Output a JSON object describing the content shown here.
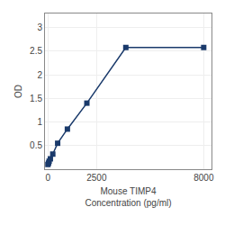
{
  "chart_data": {
    "type": "line",
    "x": [
      0,
      31.25,
      62.5,
      125,
      250,
      500,
      1000,
      2000,
      4000,
      8000
    ],
    "values": [
      0.1,
      0.13,
      0.17,
      0.22,
      0.32,
      0.55,
      0.85,
      1.4,
      2.58,
      2.58
    ],
    "color": "#1a3a6b",
    "marker": "square",
    "xlabel": "Mouse TIMP4\nConcentration (pg/ml)",
    "ylabel": "OD",
    "xlim": [
      -150,
      8400
    ],
    "xticks": [
      0,
      2500,
      8000
    ],
    "ylim": [
      0.0,
      3.3
    ],
    "yticks": [
      0.5,
      1,
      1.5,
      2,
      2.5,
      3
    ],
    "grid": true
  }
}
